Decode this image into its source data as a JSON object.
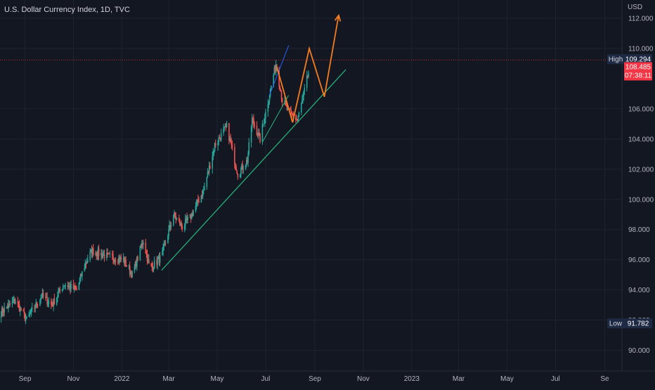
{
  "header": {
    "title": "U.S. Dollar Currency Index, 1D, TVC",
    "currency": "USD"
  },
  "colors": {
    "background": "#131722",
    "grid": "#1f2230",
    "up": "#26a69a",
    "down": "#ef5350",
    "trendline": "#26b07a",
    "projection": "#f57c1f",
    "channel": "#2962ff",
    "axis_text": "#b2b5be",
    "badge_dark": "#1e2a44",
    "price_badge": "#f23645"
  },
  "chart_data": {
    "type": "candlestick",
    "series_name": "U.S. Dollar Currency Index",
    "x_axis_ticks": [
      "Sep",
      "Nov",
      "2022",
      "Mar",
      "May",
      "Jul",
      "Sep",
      "Nov",
      "2023",
      "Mar",
      "May",
      "Jul",
      "Se"
    ],
    "y_axis_ticks": [
      "112.000",
      "110.000",
      "106.000",
      "104.000",
      "102.000",
      "100.000",
      "98.000",
      "96.000",
      "94.000",
      "92.000",
      "90.000"
    ],
    "ylim": [
      89.0,
      112.5
    ],
    "price_path": [
      {
        "date": "2021-08-01",
        "value": 92.5
      },
      {
        "date": "2021-08-20",
        "value": 93.3
      },
      {
        "date": "2021-09-03",
        "value": 92.0
      },
      {
        "date": "2021-09-22",
        "value": 93.6
      },
      {
        "date": "2021-10-05",
        "value": 93.0
      },
      {
        "date": "2021-10-20",
        "value": 94.4
      },
      {
        "date": "2021-11-05",
        "value": 94.0
      },
      {
        "date": "2021-11-15",
        "value": 95.6
      },
      {
        "date": "2021-11-24",
        "value": 96.6
      },
      {
        "date": "2021-12-15",
        "value": 96.2
      },
      {
        "date": "2022-01-03",
        "value": 96.0
      },
      {
        "date": "2022-01-14",
        "value": 95.0
      },
      {
        "date": "2022-01-28",
        "value": 97.3
      },
      {
        "date": "2022-02-05",
        "value": 95.4
      },
      {
        "date": "2022-02-20",
        "value": 96.2
      },
      {
        "date": "2022-03-07",
        "value": 99.0
      },
      {
        "date": "2022-03-18",
        "value": 98.2
      },
      {
        "date": "2022-03-28",
        "value": 98.8
      },
      {
        "date": "2022-04-14",
        "value": 100.6
      },
      {
        "date": "2022-04-28",
        "value": 103.6
      },
      {
        "date": "2022-05-13",
        "value": 104.8
      },
      {
        "date": "2022-05-27",
        "value": 101.7
      },
      {
        "date": "2022-06-08",
        "value": 102.6
      },
      {
        "date": "2022-06-14",
        "value": 105.3
      },
      {
        "date": "2022-06-24",
        "value": 104.0
      },
      {
        "date": "2022-07-06",
        "value": 107.0
      },
      {
        "date": "2022-07-14",
        "value": 109.0
      },
      {
        "date": "2022-07-22",
        "value": 106.6
      },
      {
        "date": "2022-07-29",
        "value": 105.9
      },
      {
        "date": "2022-08-10",
        "value": 105.2
      },
      {
        "date": "2022-08-16",
        "value": 106.5
      },
      {
        "date": "2022-08-24",
        "value": 108.4
      }
    ],
    "annotations": {
      "high": {
        "label": "High",
        "value": "109.294"
      },
      "low": {
        "label": "Low",
        "value": "91.782"
      },
      "last_price": {
        "value": "108.485",
        "countdown": "07:38:11"
      }
    },
    "drawings": {
      "trendline": [
        [
          "2022-02-20",
          95.3
        ],
        [
          "2022-10-10",
          108.6
        ]
      ],
      "projection": [
        [
          "2022-07-15",
          108.8
        ],
        [
          "2022-08-04",
          105.1
        ],
        [
          "2022-08-25",
          110.0
        ],
        [
          "2022-09-13",
          106.8
        ],
        [
          "2022-10-01",
          112.2
        ]
      ],
      "channel_lines": [
        [
          [
            "2022-07-06",
            106.9
          ],
          [
            "2022-07-30",
            110.2
          ]
        ],
        [
          [
            "2022-06-27",
            103.8
          ],
          [
            "2022-07-30",
            106.9
          ]
        ]
      ]
    }
  }
}
